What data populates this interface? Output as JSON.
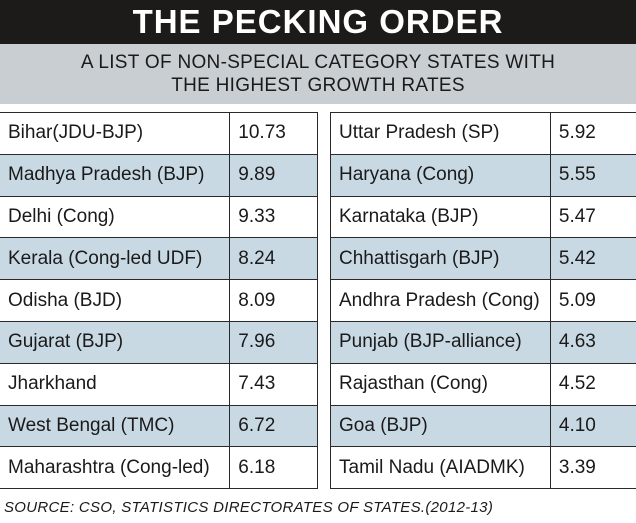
{
  "title": "THE PECKING ORDER",
  "subtitle": {
    "line1": "A LIST OF NON-SPECIAL CATEGORY STATES WITH",
    "line2": "THE HIGHEST GROWTH RATES"
  },
  "left_table": [
    {
      "state": "Bihar(JDU-BJP)",
      "rate": "10.73"
    },
    {
      "state": "Madhya Pradesh (BJP)",
      "rate": "9.89"
    },
    {
      "state": "Delhi (Cong)",
      "rate": "9.33"
    },
    {
      "state": "Kerala (Cong-led UDF)",
      "rate": "8.24"
    },
    {
      "state": "Odisha (BJD)",
      "rate": "8.09"
    },
    {
      "state": "Gujarat (BJP)",
      "rate": "7.96"
    },
    {
      "state": "Jharkhand",
      "rate": "7.43"
    },
    {
      "state": "West Bengal (TMC)",
      "rate": "6.72"
    },
    {
      "state": "Maharashtra (Cong-led)",
      "rate": "6.18"
    }
  ],
  "right_table": [
    {
      "state": "Uttar Pradesh (SP)",
      "rate": "5.92"
    },
    {
      "state": "Haryana (Cong)",
      "rate": "5.55"
    },
    {
      "state": "Karnataka (BJP)",
      "rate": "5.47"
    },
    {
      "state": "Chhattisgarh (BJP)",
      "rate": "5.42"
    },
    {
      "state": "Andhra Pradesh (Cong)",
      "rate": "5.09"
    },
    {
      "state": "Punjab (BJP-alliance)",
      "rate": "4.63"
    },
    {
      "state": "Rajasthan (Cong)",
      "rate": "4.52"
    },
    {
      "state": "Goa (BJP)",
      "rate": "4.10"
    },
    {
      "state": "Tamil Nadu (AIADMK)",
      "rate": "3.39"
    }
  ],
  "source": "SOURCE: CSO, STATISTICS DIRECTORATES OF STATES.(2012-13)",
  "colors": {
    "title_bg": "#1d1a1a",
    "subtitle_bg": "#c9ced3",
    "row_shade": "#c9d9e4"
  }
}
